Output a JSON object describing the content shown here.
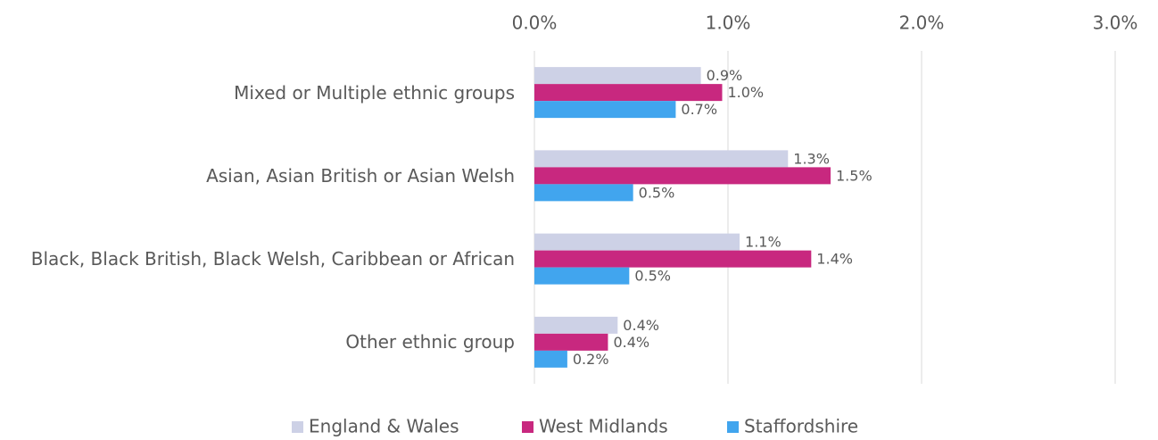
{
  "chart_data": {
    "type": "hbar",
    "categories": [
      "Mixed or Multiple ethnic groups",
      "Asian, Asian British or Asian Welsh",
      "Black, Black British, Black Welsh, Caribbean or African",
      "Other ethnic group"
    ],
    "series": [
      {
        "name": "England & Wales",
        "color": "#cdd1e6",
        "values": [
          0.86,
          1.31,
          1.06,
          0.43
        ],
        "value_labels": [
          "0.9%",
          "1.3%",
          "1.1%",
          "0.4%"
        ]
      },
      {
        "name": "West Midlands",
        "color": "#c8287f",
        "values": [
          0.97,
          1.53,
          1.43,
          0.38
        ],
        "value_labels": [
          "1.0%",
          "1.5%",
          "1.4%",
          "0.4%"
        ]
      },
      {
        "name": "Staffordshire",
        "color": "#41a5ee",
        "values": [
          0.73,
          0.51,
          0.49,
          0.17
        ],
        "value_labels": [
          "0.7%",
          "0.5%",
          "0.5%",
          "0.2%"
        ]
      }
    ],
    "xlim": [
      0,
      3
    ],
    "xticks": [
      {
        "value": 0,
        "label": "0.0%"
      },
      {
        "value": 1,
        "label": "1.0%"
      },
      {
        "value": 2,
        "label": "2.0%"
      },
      {
        "value": 3,
        "label": "3.0%"
      }
    ],
    "grid": true,
    "legend": "bottom"
  }
}
